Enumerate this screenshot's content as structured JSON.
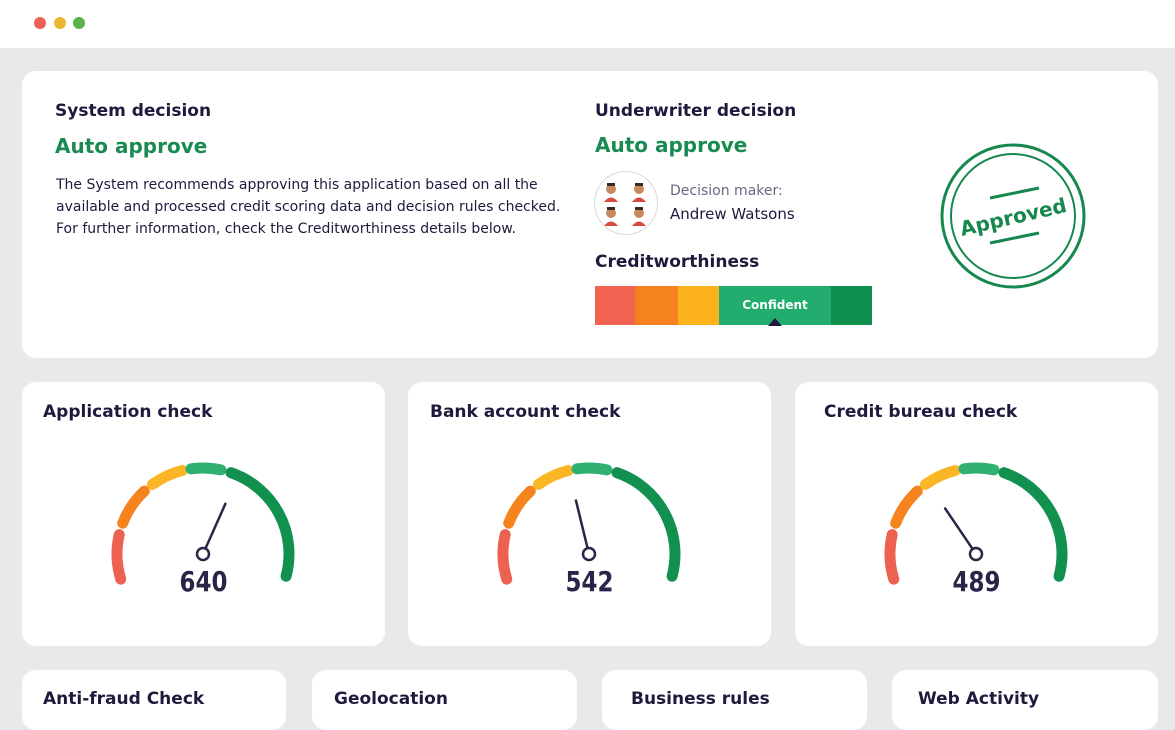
{
  "window": {
    "controls": [
      "close",
      "minimize",
      "maximize"
    ]
  },
  "system_decision": {
    "title": "System decision",
    "result": "Auto approve",
    "description": "The System recommends approving this application based on all the available and processed credit scoring data and decision rules checked. For further information, check the Creditworthiness details below."
  },
  "underwriter_decision": {
    "title": "Underwriter decision",
    "result": "Auto approve",
    "decision_maker_label": "Decision maker:",
    "decision_maker_name": "Andrew Watsons",
    "stamp_text": "Approved"
  },
  "creditworthiness": {
    "title": "Creditworthiness",
    "segments": [
      "#f26352",
      "#f5821f",
      "#fbb21c",
      "#22ad6e",
      "#10904f"
    ],
    "current_label": "Confident",
    "current_segment": 3
  },
  "checks": [
    {
      "title": "Application check",
      "value": "640",
      "score": 640
    },
    {
      "title": "Bank account check",
      "value": "542",
      "score": 542
    },
    {
      "title": "Credit bureau check",
      "value": "489",
      "score": 489
    }
  ],
  "gauge_colors": {
    "red": "#ed6152",
    "orange": "#f5841f",
    "yellow": "#fbb625",
    "light_green": "#30b071",
    "dark_green": "#12904f",
    "needle": "#2b2448"
  },
  "bottom_sections": [
    {
      "title": "Anti-fraud Check"
    },
    {
      "title": "Geolocation"
    },
    {
      "title": "Business rules"
    },
    {
      "title": "Web Activity"
    }
  ]
}
